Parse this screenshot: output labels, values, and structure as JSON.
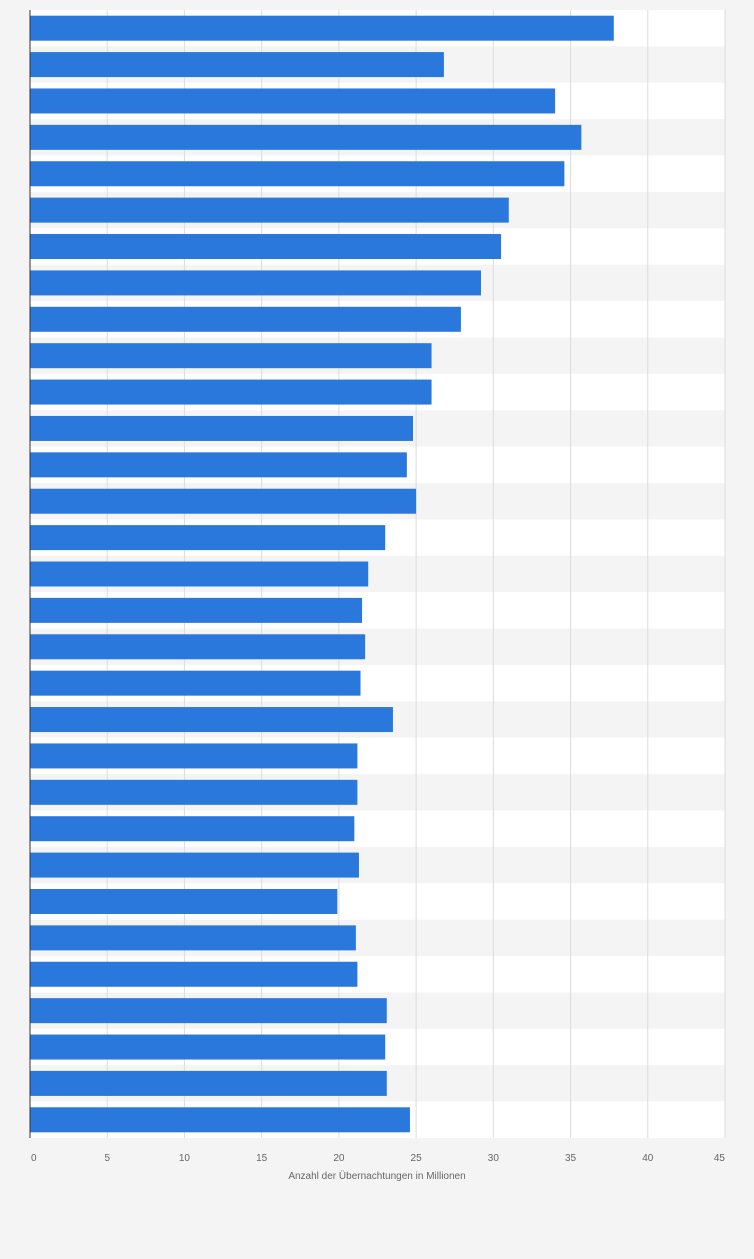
{
  "chart_data": {
    "type": "bar",
    "orientation": "horizontal",
    "values": [
      37.8,
      26.8,
      34.0,
      35.7,
      34.6,
      31.0,
      30.5,
      29.2,
      27.9,
      26.0,
      26.0,
      24.8,
      24.4,
      25.0,
      23.0,
      21.9,
      21.5,
      21.7,
      21.4,
      23.5,
      21.2,
      21.2,
      21.0,
      21.3,
      19.9,
      21.1,
      21.2,
      23.1,
      23.0,
      23.1,
      24.6
    ],
    "xlabel": "Anzahl der Übernachtungen in Millionen",
    "xlim": [
      0,
      45
    ],
    "x_ticks": [
      "0",
      "5",
      "10",
      "15",
      "20",
      "25",
      "30",
      "35",
      "40",
      "45"
    ],
    "grid": true,
    "bar_color": "#2a78dc",
    "band_colors": [
      "#ffffff",
      "#f4f4f4",
      "#fafafa"
    ]
  }
}
